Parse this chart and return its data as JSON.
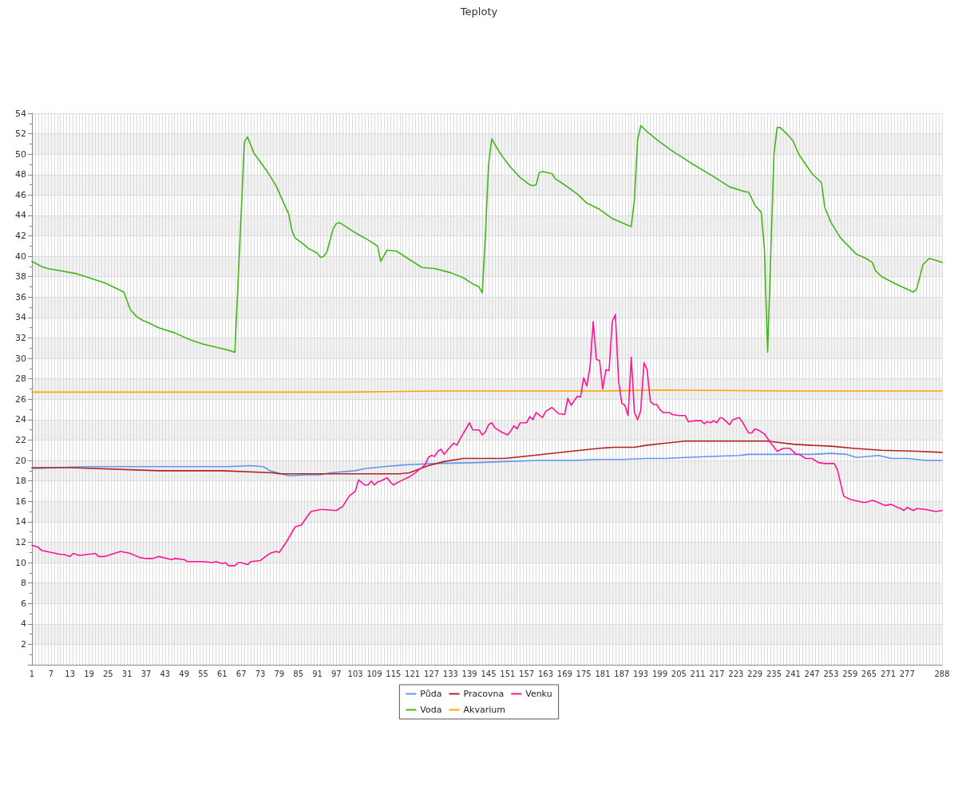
{
  "chart_data": {
    "type": "line",
    "title": "Teploty",
    "xlim": [
      1,
      288
    ],
    "xticks": [
      1,
      {
        "value": 2,
        "label": null
      },
      {
        "value": 3,
        "label": null
      },
      {
        "value": 4,
        "label": null
      },
      {
        "value": 5,
        "label": null
      },
      {
        "value": 6,
        "label": null
      },
      7,
      {
        "value": 8,
        "label": null
      },
      {
        "value": 9,
        "label": null
      },
      {
        "value": 10,
        "label": null
      },
      {
        "value": 11,
        "label": null
      },
      {
        "value": 12,
        "label": null
      },
      13,
      {
        "value": 14,
        "label": null
      },
      {
        "value": 15,
        "label": null
      },
      {
        "value": 16,
        "label": null
      },
      {
        "value": 17,
        "label": null
      },
      {
        "value": 18,
        "label": null
      },
      19,
      {
        "value": 20,
        "label": null
      },
      {
        "value": 21,
        "label": null
      },
      {
        "value": 22,
        "label": null
      },
      {
        "value": 23,
        "label": null
      },
      {
        "value": 24,
        "label": null
      },
      25,
      {
        "value": 26,
        "label": null
      },
      {
        "value": 27,
        "label": null
      },
      {
        "value": 28,
        "label": null
      },
      {
        "value": 29,
        "label": null
      },
      {
        "value": 30,
        "label": null
      },
      31,
      {
        "value": 32,
        "label": null
      },
      {
        "value": 33,
        "label": null
      },
      {
        "value": 34,
        "label": null
      },
      {
        "value": 35,
        "label": null
      },
      {
        "value": 36,
        "label": null
      },
      37,
      {
        "value": 38,
        "label": null
      },
      {
        "value": 39,
        "label": null
      },
      {
        "value": 40,
        "label": null
      },
      {
        "value": 41,
        "label": null
      },
      {
        "value": 42,
        "label": null
      },
      43,
      {
        "value": 44,
        "label": null
      },
      {
        "value": 45,
        "label": null
      },
      {
        "value": 46,
        "label": null
      },
      {
        "value": 47,
        "label": null
      },
      {
        "value": 48,
        "label": null
      },
      49,
      {
        "value": 50,
        "label": null
      },
      {
        "value": 51,
        "label": null
      },
      {
        "value": 52,
        "label": null
      },
      {
        "value": 53,
        "label": null
      },
      {
        "value": 54,
        "label": null
      },
      55,
      {
        "value": 56,
        "label": null
      },
      {
        "value": 57,
        "label": null
      },
      {
        "value": 58,
        "label": null
      },
      {
        "value": 59,
        "label": null
      },
      {
        "value": 60,
        "label": null
      },
      61,
      {
        "value": 62,
        "label": null
      },
      {
        "value": 63,
        "label": null
      },
      {
        "value": 64,
        "label": null
      },
      {
        "value": 65,
        "label": null
      },
      {
        "value": 66,
        "label": null
      },
      67,
      {
        "value": 68,
        "label": null
      },
      {
        "value": 69,
        "label": null
      },
      {
        "value": 70,
        "label": null
      },
      {
        "value": 71,
        "label": null
      },
      {
        "value": 72,
        "label": null
      },
      73,
      {
        "value": 74,
        "label": null
      },
      {
        "value": 75,
        "label": null
      },
      {
        "value": 76,
        "label": null
      },
      {
        "value": 77,
        "label": null
      },
      {
        "value": 78,
        "label": null
      },
      79,
      {
        "value": 80,
        "label": null
      },
      {
        "value": 81,
        "label": null
      },
      {
        "value": 82,
        "label": null
      },
      {
        "value": 83,
        "label": null
      },
      {
        "value": 84,
        "label": null
      },
      85,
      {
        "value": 86,
        "label": null
      },
      {
        "value": 87,
        "label": null
      },
      {
        "value": 88,
        "label": null
      },
      {
        "value": 89,
        "label": null
      },
      {
        "value": 90,
        "label": null
      },
      91,
      {
        "value": 92,
        "label": null
      },
      {
        "value": 93,
        "label": null
      },
      {
        "value": 94,
        "label": null
      },
      {
        "value": 95,
        "label": null
      },
      {
        "value": 96,
        "label": null
      },
      97,
      {
        "value": 98,
        "label": null
      },
      {
        "value": 99,
        "label": null
      },
      {
        "value": 100,
        "label": null
      },
      {
        "value": 101,
        "label": null
      },
      {
        "value": 102,
        "label": null
      },
      103,
      {
        "value": 104,
        "label": null
      },
      {
        "value": 105,
        "label": null
      },
      {
        "value": 106,
        "label": null
      },
      {
        "value": 107,
        "label": null
      },
      {
        "value": 108,
        "label": null
      },
      109,
      {
        "value": 110,
        "label": null
      },
      {
        "value": 111,
        "label": null
      },
      {
        "value": 112,
        "label": null
      },
      {
        "value": 113,
        "label": null
      },
      {
        "value": 114,
        "label": null
      },
      115,
      {
        "value": 116,
        "label": null
      },
      {
        "value": 117,
        "label": null
      },
      {
        "value": 118,
        "label": null
      },
      {
        "value": 119,
        "label": null
      },
      {
        "value": 120,
        "label": null
      },
      121,
      {
        "value": 122,
        "label": null
      },
      {
        "value": 123,
        "label": null
      },
      {
        "value": 124,
        "label": null
      },
      {
        "value": 125,
        "label": null
      },
      {
        "value": 126,
        "label": null
      },
      127,
      {
        "value": 128,
        "label": null
      },
      {
        "value": 129,
        "label": null
      },
      {
        "value": 130,
        "label": null
      },
      {
        "value": 131,
        "label": null
      },
      {
        "value": 132,
        "label": null
      },
      133,
      {
        "value": 134,
        "label": null
      },
      {
        "value": 135,
        "label": null
      },
      {
        "value": 136,
        "label": null
      },
      {
        "value": 137,
        "label": null
      },
      {
        "value": 138,
        "label": null
      },
      139,
      {
        "value": 140,
        "label": null
      },
      {
        "value": 141,
        "label": null
      },
      {
        "value": 142,
        "label": null
      },
      {
        "value": 143,
        "label": null
      },
      {
        "value": 144,
        "label": null
      },
      145,
      {
        "value": 146,
        "label": null
      },
      {
        "value": 147,
        "label": null
      },
      {
        "value": 148,
        "label": null
      },
      {
        "value": 149,
        "label": null
      },
      {
        "value": 150,
        "label": null
      },
      151,
      {
        "value": 152,
        "label": null
      },
      {
        "value": 153,
        "label": null
      },
      {
        "value": 154,
        "label": null
      },
      {
        "value": 155,
        "label": null
      },
      {
        "value": 156,
        "label": null
      },
      157,
      {
        "value": 158,
        "label": null
      },
      {
        "value": 159,
        "label": null
      },
      {
        "value": 160,
        "label": null
      },
      {
        "value": 161,
        "label": null
      },
      {
        "value": 162,
        "label": null
      },
      163,
      {
        "value": 164,
        "label": null
      },
      {
        "value": 165,
        "label": null
      },
      {
        "value": 166,
        "label": null
      },
      {
        "value": 167,
        "label": null
      },
      {
        "value": 168,
        "label": null
      },
      169,
      {
        "value": 170,
        "label": null
      },
      {
        "value": 171,
        "label": null
      },
      {
        "value": 172,
        "label": null
      },
      {
        "value": 173,
        "label": null
      },
      {
        "value": 174,
        "label": null
      },
      175,
      {
        "value": 176,
        "label": null
      },
      {
        "value": 177,
        "label": null
      },
      {
        "value": 178,
        "label": null
      },
      {
        "value": 179,
        "label": null
      },
      {
        "value": 180,
        "label": null
      },
      181,
      {
        "value": 182,
        "label": null
      },
      {
        "value": 183,
        "label": null
      },
      {
        "value": 184,
        "label": null
      },
      {
        "value": 185,
        "label": null
      },
      {
        "value": 186,
        "label": null
      },
      187,
      {
        "value": 188,
        "label": null
      },
      {
        "value": 189,
        "label": null
      },
      {
        "value": 190,
        "label": null
      },
      {
        "value": 191,
        "label": null
      },
      {
        "value": 192,
        "label": null
      },
      193,
      {
        "value": 194,
        "label": null
      },
      {
        "value": 195,
        "label": null
      },
      {
        "value": 196,
        "label": null
      },
      {
        "value": 197,
        "label": null
      },
      {
        "value": 198,
        "label": null
      },
      199,
      {
        "value": 200,
        "label": null
      },
      {
        "value": 201,
        "label": null
      },
      {
        "value": 202,
        "label": null
      },
      {
        "value": 203,
        "label": null
      },
      {
        "value": 204,
        "label": null
      },
      205,
      {
        "value": 206,
        "label": null
      },
      {
        "value": 207,
        "label": null
      },
      {
        "value": 208,
        "label": null
      },
      {
        "value": 209,
        "label": null
      },
      {
        "value": 210,
        "label": null
      },
      211,
      {
        "value": 212,
        "label": null
      },
      {
        "value": 213,
        "label": null
      },
      {
        "value": 214,
        "label": null
      },
      {
        "value": 215,
        "label": null
      },
      {
        "value": 216,
        "label": null
      },
      217,
      {
        "value": 218,
        "label": null
      },
      {
        "value": 219,
        "label": null
      },
      {
        "value": 220,
        "label": null
      },
      {
        "value": 221,
        "label": null
      },
      {
        "value": 222,
        "label": null
      },
      223,
      {
        "value": 224,
        "label": null
      },
      {
        "value": 225,
        "label": null
      },
      {
        "value": 226,
        "label": null
      },
      {
        "value": 227,
        "label": null
      },
      {
        "value": 228,
        "label": null
      },
      229,
      {
        "value": 230,
        "label": null
      },
      {
        "value": 231,
        "label": null
      },
      {
        "value": 232,
        "label": null
      },
      {
        "value": 233,
        "label": null
      },
      {
        "value": 234,
        "label": null
      },
      235,
      {
        "value": 236,
        "label": null
      },
      {
        "value": 237,
        "label": null
      },
      {
        "value": 238,
        "label": null
      },
      {
        "value": 239,
        "label": null
      },
      {
        "value": 240,
        "label": null
      },
      241,
      {
        "value": 242,
        "label": null
      },
      {
        "value": 243,
        "label": null
      },
      {
        "value": 244,
        "label": null
      },
      {
        "value": 245,
        "label": null
      },
      {
        "value": 246,
        "label": null
      },
      247,
      {
        "value": 248,
        "label": null
      },
      {
        "value": 249,
        "label": null
      },
      {
        "value": 250,
        "label": null
      },
      {
        "value": 251,
        "label": null
      },
      {
        "value": 252,
        "label": null
      },
      253,
      {
        "value": 254,
        "label": null
      },
      {
        "value": 255,
        "label": null
      },
      {
        "value": 256,
        "label": null
      },
      {
        "value": 257,
        "label": null
      },
      {
        "value": 258,
        "label": null
      },
      259,
      {
        "value": 260,
        "label": null
      },
      {
        "value": 261,
        "label": null
      },
      {
        "value": 262,
        "label": null
      },
      {
        "value": 263,
        "label": null
      },
      {
        "value": 264,
        "label": null
      },
      265,
      {
        "value": 266,
        "label": null
      },
      {
        "value": 267,
        "label": null
      },
      {
        "value": 268,
        "label": null
      },
      {
        "value": 269,
        "label": null
      },
      {
        "value": 270,
        "label": null
      },
      271,
      {
        "value": 272,
        "label": null
      },
      {
        "value": 273,
        "label": null
      },
      {
        "value": 274,
        "label": null
      },
      {
        "value": 275,
        "label": null
      },
      {
        "value": 276,
        "label": null
      },
      277,
      {
        "value": 278,
        "label": null
      },
      {
        "value": 279,
        "label": null
      },
      {
        "value": 280,
        "label": null
      },
      {
        "value": 281,
        "label": null
      },
      {
        "value": 282,
        "label": null
      },
      {
        "value": 283,
        "label": null
      },
      {
        "value": 284,
        "label": null
      },
      {
        "value": 285,
        "label": null
      },
      {
        "value": 286,
        "label": null
      },
      {
        "value": 287,
        "label": null
      },
      288
    ],
    "ylim": [
      0,
      54
    ],
    "yticks": [
      {
        "value": 0,
        "label": null
      },
      2,
      4,
      6,
      8,
      10,
      12,
      14,
      16,
      18,
      20,
      22,
      24,
      26,
      28,
      30,
      32,
      34,
      36,
      38,
      40,
      42,
      44,
      46,
      48,
      50,
      52,
      54
    ],
    "grid": true,
    "legend": "bottom",
    "marker": "none",
    "line_style": "solid",
    "series": [
      {
        "name": "Půda",
        "color": "#6495ed",
        "x": [
          1,
          18,
          63,
          70,
          74,
          76,
          82,
          88,
          92,
          95,
          103,
          106,
          112,
          120,
          128,
          142,
          150,
          161,
          172,
          179,
          187,
          195,
          201,
          207,
          215,
          224,
          227,
          247,
          253,
          258,
          261,
          268,
          272,
          277,
          283,
          288
        ],
        "values": [
          19.2,
          19.4,
          19.4,
          19.5,
          19.4,
          19.0,
          18.5,
          18.6,
          18.6,
          18.8,
          19.0,
          19.2,
          19.4,
          19.6,
          19.7,
          19.8,
          19.9,
          20.0,
          20.0,
          20.1,
          20.1,
          20.2,
          20.2,
          20.3,
          20.4,
          20.5,
          20.6,
          20.6,
          20.7,
          20.6,
          20.3,
          20.5,
          20.2,
          20.2,
          20.0,
          20.0
        ]
      },
      {
        "name": "Voda",
        "color": "#44b519",
        "x": [
          1,
          4,
          6,
          15,
          18,
          24,
          30,
          32,
          34,
          36,
          37,
          41,
          46,
          51,
          55,
          59,
          63,
          65,
          68,
          69,
          71,
          75,
          78,
          82,
          83,
          84,
          87,
          88,
          91,
          92,
          93,
          94,
          96,
          97,
          98,
          101,
          103,
          107,
          110,
          111,
          113,
          116,
          120,
          124,
          128,
          133,
          137,
          140,
          142,
          143,
          144,
          145,
          146,
          148,
          150,
          152,
          155,
          158,
          159,
          160,
          161,
          162,
          165,
          166,
          168,
          173,
          176,
          180,
          184,
          187,
          190,
          191,
          192,
          193,
          195,
          199,
          203,
          209,
          216,
          221,
          226,
          227,
          229,
          231,
          232,
          233,
          235,
          236,
          237,
          239,
          241,
          243,
          245,
          247,
          250,
          251,
          253,
          256,
          261,
          264,
          266,
          267,
          269,
          274,
          279,
          280,
          282,
          284,
          286,
          288
        ],
        "values": [
          39.5,
          39.0,
          38.8,
          38.3,
          38.0,
          37.4,
          36.5,
          34.8,
          34.1,
          33.7,
          33.6,
          33.0,
          32.5,
          31.8,
          31.4,
          31.1,
          30.8,
          30.6,
          51.2,
          51.7,
          50.1,
          48.4,
          46.9,
          44.1,
          42.5,
          41.8,
          41.1,
          40.8,
          40.3,
          39.9,
          40.0,
          40.4,
          42.7,
          43.2,
          43.3,
          42.7,
          42.3,
          41.6,
          41.0,
          39.5,
          40.6,
          40.5,
          39.7,
          38.9,
          38.8,
          38.4,
          37.9,
          37.3,
          37.0,
          36.4,
          42.0,
          49.0,
          51.5,
          50.4,
          49.5,
          48.7,
          47.7,
          47.0,
          46.9,
          47.0,
          48.2,
          48.3,
          48.1,
          47.6,
          47.2,
          46.1,
          45.2,
          44.6,
          43.7,
          43.3,
          42.9,
          45.6,
          51.4,
          52.8,
          52.2,
          51.2,
          50.3,
          49.1,
          47.8,
          46.8,
          46.3,
          46.3,
          45.0,
          44.3,
          40.6,
          30.6,
          50.0,
          52.6,
          52.6,
          52.0,
          51.3,
          49.9,
          49.0,
          48.1,
          47.2,
          44.8,
          43.3,
          41.8,
          40.2,
          39.8,
          39.4,
          38.6,
          38.0,
          37.2,
          36.5,
          36.8,
          39.2,
          39.8,
          39.6,
          39.4
        ]
      },
      {
        "name": "Pracovna",
        "color": "#b22222",
        "x": [
          1,
          13,
          41,
          61,
          77,
          79,
          117,
          120,
          126,
          131,
          137,
          150,
          159,
          171,
          180,
          185,
          191,
          195,
          201,
          207,
          233,
          241,
          246,
          253,
          260,
          269,
          280,
          288
        ],
        "values": [
          19.3,
          19.3,
          19.0,
          19.0,
          18.8,
          18.7,
          18.7,
          18.8,
          19.5,
          19.9,
          20.2,
          20.2,
          20.5,
          20.9,
          21.2,
          21.3,
          21.3,
          21.5,
          21.7,
          21.9,
          21.9,
          21.6,
          21.5,
          21.4,
          21.2,
          21.0,
          20.9,
          20.8
        ]
      },
      {
        "name": "Akvarium",
        "color": "#ffa500",
        "x": [
          1,
          50,
          100,
          130,
          180,
          200,
          240,
          288
        ],
        "values": [
          26.7,
          26.7,
          26.7,
          26.8,
          26.8,
          26.9,
          26.8,
          26.8
        ]
      },
      {
        "name": "Venku",
        "color": "#ff1493",
        "x": [
          1,
          3,
          4,
          10,
          11,
          13,
          14,
          16,
          21,
          22,
          24,
          27,
          29,
          32,
          35,
          37,
          39,
          41,
          45,
          46,
          49,
          50,
          55,
          58,
          59,
          61,
          62,
          63,
          65,
          66,
          67,
          69,
          70,
          73,
          76,
          78,
          79,
          81,
          84,
          86,
          88,
          89,
          92,
          93,
          97,
          99,
          101,
          103,
          104,
          106,
          107,
          108,
          109,
          110,
          111,
          113,
          114,
          115,
          116,
          118,
          120,
          122,
          123,
          124,
          125,
          126,
          127,
          128,
          129,
          130,
          131,
          132,
          134,
          135,
          136,
          139,
          140,
          142,
          143,
          144,
          145,
          146,
          147,
          149,
          151,
          152,
          153,
          154,
          155,
          157,
          158,
          159,
          160,
          162,
          163,
          165,
          167,
          169,
          170,
          171,
          173,
          174,
          175,
          176,
          177,
          178,
          179,
          180,
          181,
          182,
          183,
          184,
          185,
          186,
          187,
          188,
          189,
          190,
          191,
          192,
          193,
          194,
          195,
          196,
          197,
          198,
          199,
          200,
          202,
          203,
          205,
          207,
          208,
          210,
          212,
          213,
          214,
          215,
          216,
          217,
          218,
          219,
          220,
          221,
          222,
          224,
          225,
          227,
          228,
          229,
          230,
          232,
          234,
          236,
          238,
          240,
          242,
          243,
          245,
          247,
          249,
          251,
          254,
          255,
          257,
          259,
          263,
          264,
          266,
          267,
          270,
          272,
          274,
          275,
          276,
          277,
          279,
          280,
          283,
          286,
          288
        ],
        "values": [
          11.7,
          11.5,
          11.2,
          10.8,
          10.8,
          10.6,
          10.9,
          10.7,
          10.9,
          10.6,
          10.6,
          10.9,
          11.1,
          10.9,
          10.5,
          10.4,
          10.4,
          10.6,
          10.3,
          10.4,
          10.3,
          10.1,
          10.1,
          10.0,
          10.1,
          9.9,
          10.0,
          9.7,
          9.7,
          10.0,
          10.0,
          9.8,
          10.1,
          10.2,
          10.9,
          11.1,
          11.0,
          11.9,
          13.5,
          13.7,
          14.6,
          15.0,
          15.2,
          15.2,
          15.1,
          15.5,
          16.5,
          17.0,
          18.1,
          17.6,
          17.6,
          18.0,
          17.6,
          17.9,
          18.0,
          18.3,
          17.9,
          17.6,
          17.8,
          18.1,
          18.4,
          18.8,
          19.1,
          19.3,
          19.6,
          20.3,
          20.5,
          20.4,
          20.9,
          21.1,
          20.6,
          21.0,
          21.7,
          21.5,
          22.1,
          23.7,
          23.0,
          23.0,
          22.5,
          22.8,
          23.5,
          23.7,
          23.2,
          22.8,
          22.5,
          22.9,
          23.4,
          23.1,
          23.7,
          23.7,
          24.3,
          24.0,
          24.7,
          24.2,
          24.8,
          25.2,
          24.6,
          24.5,
          26.1,
          25.4,
          26.3,
          26.2,
          28.1,
          27.3,
          29.2,
          33.6,
          29.9,
          29.8,
          27.0,
          28.9,
          28.8,
          33.6,
          34.3,
          27.8,
          25.6,
          25.4,
          24.4,
          30.1,
          24.7,
          24.0,
          24.9,
          29.6,
          28.9,
          25.8,
          25.5,
          25.5,
          25.0,
          24.7,
          24.7,
          24.5,
          24.4,
          24.4,
          23.8,
          23.9,
          23.9,
          23.6,
          23.8,
          23.7,
          23.9,
          23.7,
          24.2,
          24.1,
          23.8,
          23.5,
          24.0,
          24.2,
          23.8,
          22.7,
          22.7,
          23.1,
          23.0,
          22.6,
          21.7,
          20.9,
          21.2,
          21.2,
          20.6,
          20.6,
          20.2,
          20.2,
          19.8,
          19.7,
          19.7,
          19.1,
          16.5,
          16.2,
          15.9,
          15.9,
          16.1,
          16.0,
          15.6,
          15.7,
          15.4,
          15.3,
          15.1,
          15.4,
          15.1,
          15.3,
          15.2,
          15.0,
          15.1
        ]
      }
    ]
  }
}
